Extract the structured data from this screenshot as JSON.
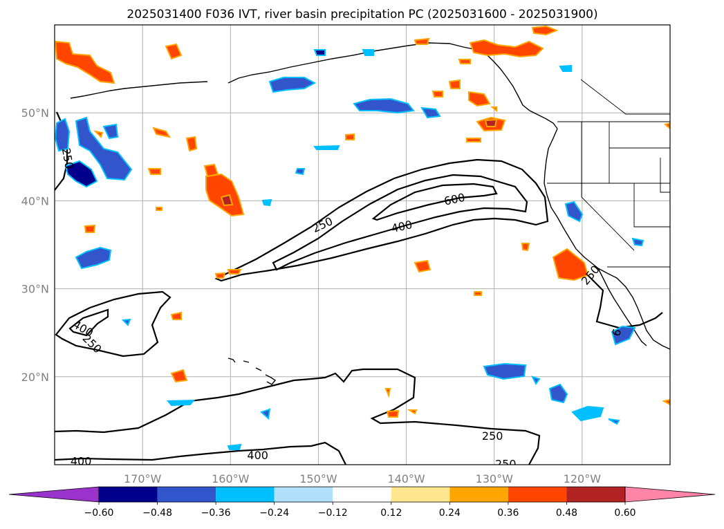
{
  "chart_data": {
    "type": "map-contour",
    "title": "2025031400 F036 IVT, river basin precipitation PC (2025031600 - 2025031900)",
    "lon_range": [
      -180,
      -110
    ],
    "lat_range": [
      10,
      60
    ],
    "x_ticks": [
      {
        "value": -170,
        "label": "170°W"
      },
      {
        "value": -160,
        "label": "160°W"
      },
      {
        "value": -150,
        "label": "150°W"
      },
      {
        "value": -140,
        "label": "140°W"
      },
      {
        "value": -130,
        "label": "130°W"
      },
      {
        "value": -120,
        "label": "120°W"
      }
    ],
    "y_ticks": [
      {
        "value": 20,
        "label": "20°N"
      },
      {
        "value": 30,
        "label": "30°N"
      },
      {
        "value": 40,
        "label": "40°N"
      },
      {
        "value": 50,
        "label": "50°N"
      }
    ],
    "grid": true,
    "ivt_contour_levels": [
      250,
      400,
      600
    ],
    "ivt_contour_labels": [
      {
        "text": "250",
        "lon": -149.5,
        "lat": 37.2,
        "rotate": -25
      },
      {
        "text": "600",
        "lon": -134.5,
        "lat": 40.1,
        "rotate": -12
      },
      {
        "text": "400",
        "lon": -140.5,
        "lat": 37.0,
        "rotate": -12
      },
      {
        "text": "250",
        "lon": -178.6,
        "lat": 44.8,
        "rotate": 80
      },
      {
        "text": "400",
        "lon": -176.8,
        "lat": 25.4,
        "rotate": 30
      },
      {
        "text": "250",
        "lon": -175.8,
        "lat": 23.7,
        "rotate": 45
      },
      {
        "text": "250",
        "lon": -119.0,
        "lat": 31.5,
        "rotate": -50
      },
      {
        "text": "250",
        "lon": -130.2,
        "lat": 13.2,
        "rotate": 0
      },
      {
        "text": "400",
        "lon": -177.0,
        "lat": 10.3,
        "rotate": 0
      },
      {
        "text": "400",
        "lon": -156.9,
        "lat": 11.0,
        "rotate": 0
      },
      {
        "text": "250",
        "lon": -128.7,
        "lat": 10.0,
        "rotate": 0
      },
      {
        "text": "6",
        "lon": -116.0,
        "lat": 25.0,
        "rotate": -70
      }
    ],
    "colorbar": {
      "levels": [
        -0.6,
        -0.48,
        -0.36,
        -0.24,
        -0.12,
        0.12,
        0.24,
        0.36,
        0.48,
        0.6
      ],
      "tick_labels": [
        "−0.60",
        "−0.48",
        "−0.36",
        "−0.24",
        "−0.12",
        "0.12",
        "0.24",
        "0.36",
        "0.48",
        "0.60"
      ],
      "colors": [
        "#9933cc",
        "#00008b",
        "#3355cc",
        "#00bfff",
        "#b0e0fa",
        "#ffffff",
        "#ffe68f",
        "#ffa500",
        "#ff4500",
        "#b22222",
        "#ff85a8"
      ],
      "extend": "both"
    }
  }
}
